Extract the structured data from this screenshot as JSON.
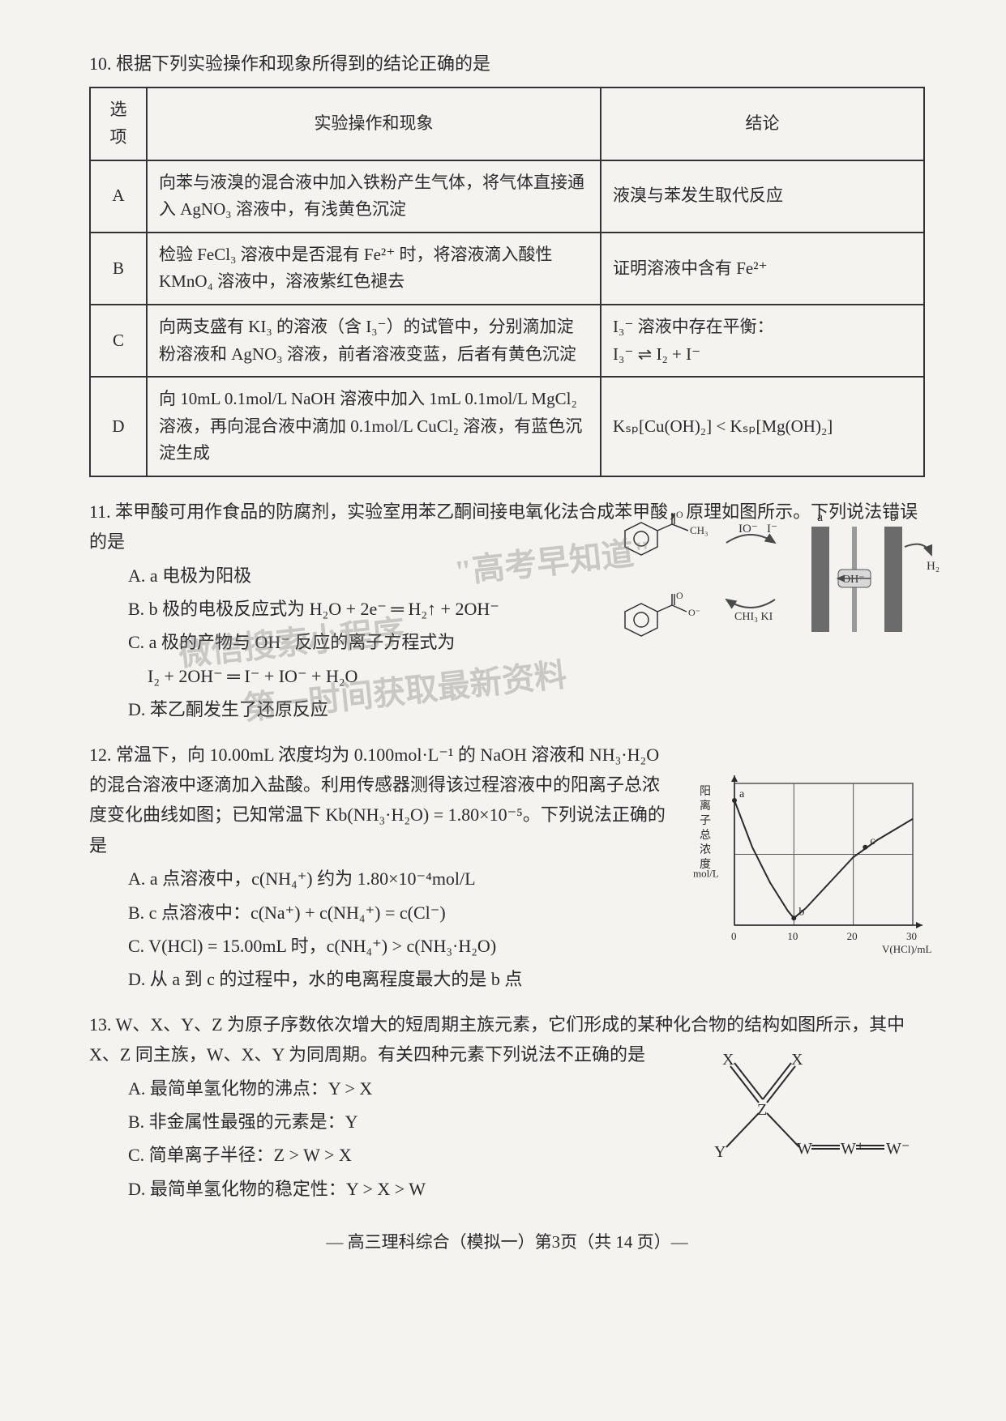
{
  "q10": {
    "prompt": "10. 根据下列实验操作和现象所得到的结论正确的是",
    "headers": [
      "选项",
      "实验操作和现象",
      "结论"
    ],
    "rows": [
      {
        "opt": "A",
        "operation": "向苯与液溴的混合液中加入铁粉产生气体，将气体直接通入 AgNO₃ 溶液中，有浅黄色沉淀",
        "conclusion": "液溴与苯发生取代反应"
      },
      {
        "opt": "B",
        "operation": "检验 FeCl₃ 溶液中是否混有 Fe²⁺ 时，将溶液滴入酸性 KMnO₄ 溶液中，溶液紫红色褪去",
        "conclusion": "证明溶液中含有 Fe²⁺"
      },
      {
        "opt": "C",
        "operation": "向两支盛有 KI₃ 的溶液（含 I₃⁻）的试管中，分别滴加淀粉溶液和 AgNO₃ 溶液，前者溶液变蓝，后者有黄色沉淀",
        "conclusion": "I₃⁻ 溶液中存在平衡：\nI₃⁻ ⇌ I₂ + I⁻"
      },
      {
        "opt": "D",
        "operation": "向 10mL 0.1mol/L NaOH 溶液中加入 1mL 0.1mol/L MgCl₂ 溶液，再向混合液中滴加 0.1mol/L CuCl₂ 溶液，有蓝色沉淀生成",
        "conclusion": "Kₛₚ[Cu(OH)₂] < Kₛₚ[Mg(OH)₂]"
      }
    ]
  },
  "q11": {
    "prompt": "11. 苯甲酸可用作食品的防腐剂，实验室用苯乙酮间接电氧化法合成苯甲酸，原理如图所示。下列说法错误的是",
    "options": {
      "A": "A. a 电极为阳极",
      "B": "B. b 极的电极反应式为 H₂O + 2e⁻ ═ H₂↑ + 2OH⁻",
      "C": "C. a 极的产物与 OH⁻ 反应的离子方程式为",
      "C_eq": "I₂ + 2OH⁻ ═ I⁻ + IO⁻ + H₂O",
      "D": "D. 苯乙酮发生了还原反应"
    },
    "fig": {
      "colors": {
        "electrode": "#6b6b6b",
        "membrane": "#9a9a9a",
        "arrow": "#4a4a4a",
        "text": "#333"
      },
      "labels": {
        "IO": "IO⁻",
        "I": "I⁻",
        "a": "a",
        "b": "b",
        "H2": "H₂",
        "OH": "OH⁻",
        "CH3": "CH₃",
        "CHI3KI": "CHI₃ KI",
        "C_O": "C",
        "benzene": "benzene-ring"
      }
    }
  },
  "q12": {
    "prompt": "12. 常温下，向 10.00mL 浓度均为 0.100mol·L⁻¹ 的 NaOH 溶液和 NH₃·H₂O 的混合溶液中逐滴加入盐酸。利用传感器测得该过程溶液中的阳离子总浓度变化曲线如图；已知常温下 Kb(NH₃·H₂O) = 1.80×10⁻⁵。下列说法正确的是",
    "options": {
      "A": "A. a 点溶液中，c(NH₄⁺) 约为 1.80×10⁻⁴mol/L",
      "B": "B. c 点溶液中：c(Na⁺) + c(NH₄⁺) = c(Cl⁻)",
      "C": "C. V(HCl) = 15.00mL 时，c(NH₄⁺) > c(NH₃·H₂O)",
      "D": "D. 从 a 到 c 的过程中，水的电离程度最大的是 b 点"
    },
    "chart": {
      "type": "line",
      "xlim": [
        0,
        30
      ],
      "xtick_step": 10,
      "xlabel": "V(HCl)/mL",
      "ylabel": "阳离子总浓度",
      "yunit": "mol/L",
      "points": {
        "a": [
          0,
          0.88
        ],
        "b": [
          10,
          0.05
        ],
        "c": [
          22,
          0.55
        ]
      },
      "curve": [
        [
          0,
          0.88
        ],
        [
          3,
          0.55
        ],
        [
          6,
          0.3
        ],
        [
          9,
          0.1
        ],
        [
          10,
          0.05
        ],
        [
          12,
          0.12
        ],
        [
          16,
          0.3
        ],
        [
          20,
          0.48
        ],
        [
          24,
          0.6
        ],
        [
          28,
          0.7
        ],
        [
          30,
          0.75
        ]
      ],
      "grid_color": "#555",
      "line_color": "#2a2a2a",
      "background_color": "#f5f3ef",
      "line_width": 2
    }
  },
  "q13": {
    "prompt": "13. W、X、Y、Z 为原子序数依次增大的短周期主族元素，它们形成的某种化合物的结构如图所示，其中 X、Z 同主族，W、X、Y 为同周期。有关四种元素下列说法不正确的是",
    "options": {
      "A": "A. 最简单氢化物的沸点：Y > X",
      "B": "B. 非金属性最强的元素是：Y",
      "C": "C. 简单离子半径：Z > W > X",
      "D": "D. 最简单氢化物的稳定性：Y > X > W"
    },
    "fig": {
      "nodes": {
        "X1": "X",
        "X2": "X",
        "Z": "Z",
        "Y": "Y",
        "W1": "W",
        "W2": "W⁺",
        "W3": "W⁻"
      },
      "colors": {
        "stroke": "#2a2a2a"
      }
    }
  },
  "footer": "— 高三理科综合（模拟一）第3页（共 14 页）—",
  "watermarks": {
    "l1": "\"高考早知道\"",
    "l2": "微信搜索小程序",
    "l3": "第一时间获取最新资料"
  }
}
